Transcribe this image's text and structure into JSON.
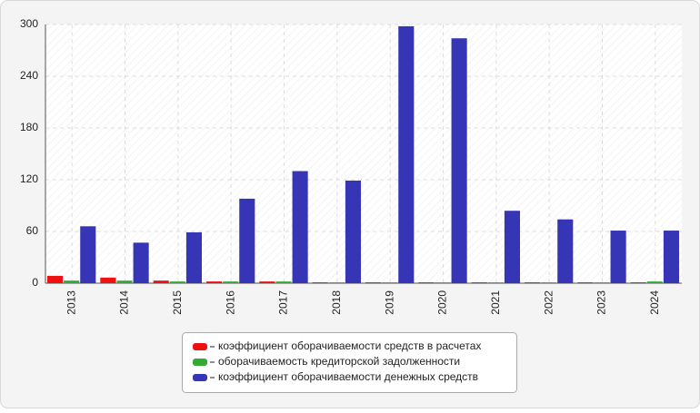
{
  "chart_data": {
    "type": "bar",
    "categories": [
      "2013",
      "2014",
      "2015",
      "2016",
      "2017",
      "2018",
      "2019",
      "2020",
      "2021",
      "2022",
      "2023",
      "2024"
    ],
    "series": [
      {
        "name": "коэффициент оборачиваемости средств в расчетах",
        "color": "#ee1111",
        "values": [
          8.5,
          6.5,
          3,
          2,
          2,
          1,
          1,
          1,
          1,
          1,
          1,
          1
        ]
      },
      {
        "name": "оборачиваемость кредиторской задолженности",
        "color": "#33aa33",
        "values": [
          3,
          3,
          2,
          2,
          2,
          1,
          1,
          1,
          1,
          1,
          1,
          2
        ]
      },
      {
        "name": "коэффициент оборачиваемости денежных средств",
        "color": "#3535b5",
        "values": [
          66,
          47,
          59,
          98,
          130,
          119,
          298,
          284,
          84,
          74,
          61,
          61
        ]
      }
    ],
    "ylim": [
      0,
      300
    ],
    "yticks": [
      0,
      60,
      120,
      180,
      240,
      300
    ],
    "grid": true,
    "legend": "bottom"
  }
}
